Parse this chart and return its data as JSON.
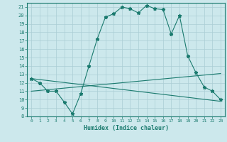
{
  "xlabel": "Humidex (Indice chaleur)",
  "bg_color": "#cce8ec",
  "line_color": "#1a7a6e",
  "grid_color": "#aacdd4",
  "xlim": [
    -0.5,
    23.5
  ],
  "ylim": [
    8,
    21.5
  ],
  "xticks": [
    0,
    1,
    2,
    3,
    4,
    5,
    6,
    7,
    8,
    9,
    10,
    11,
    12,
    13,
    14,
    15,
    16,
    17,
    18,
    19,
    20,
    21,
    22,
    23
  ],
  "yticks": [
    8,
    9,
    10,
    11,
    12,
    13,
    14,
    15,
    16,
    17,
    18,
    19,
    20,
    21
  ],
  "line1_x": [
    0,
    1,
    2,
    3,
    4,
    5,
    6,
    7,
    8,
    9,
    10,
    11,
    12,
    13,
    14,
    15,
    16,
    17,
    18,
    19,
    20,
    21,
    22,
    23
  ],
  "line1_y": [
    12.5,
    12.0,
    11.0,
    11.0,
    9.7,
    8.3,
    10.7,
    14.0,
    17.2,
    19.8,
    20.2,
    21.0,
    20.8,
    20.3,
    21.2,
    20.8,
    20.7,
    17.8,
    20.0,
    15.2,
    13.2,
    11.5,
    11.0,
    10.0
  ],
  "line2_x": [
    0,
    23
  ],
  "line2_y": [
    12.5,
    9.8
  ],
  "line3_x": [
    0,
    23
  ],
  "line3_y": [
    11.0,
    13.1
  ]
}
